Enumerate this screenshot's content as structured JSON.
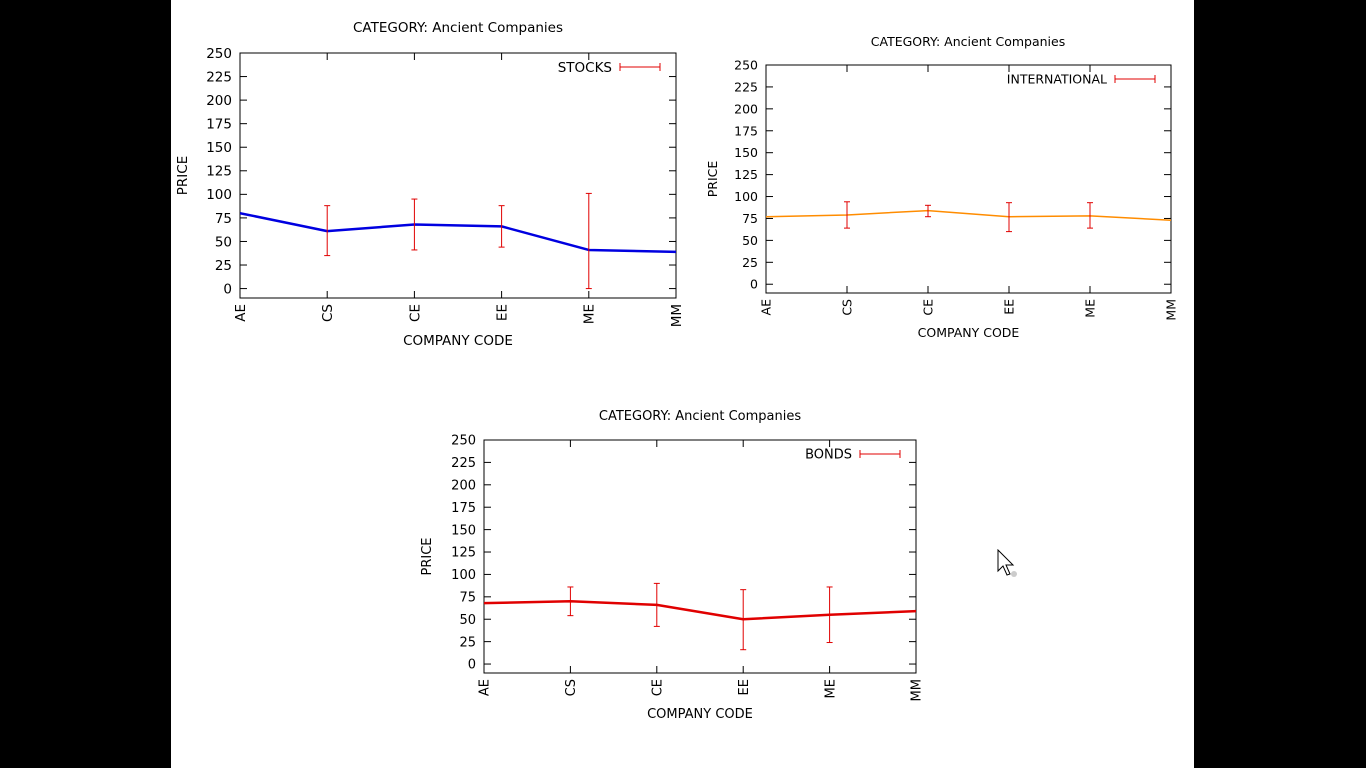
{
  "chart_data": [
    {
      "type": "line",
      "title": "CATEGORY: Ancient Companies",
      "xlabel": "COMPANY CODE",
      "ylabel": "PRICE",
      "categories": [
        "AE",
        "CS",
        "CE",
        "EE",
        "ME",
        "MM"
      ],
      "ylim": [
        -10,
        250
      ],
      "yticks": [
        0,
        25,
        50,
        75,
        100,
        125,
        150,
        175,
        200,
        225,
        250
      ],
      "legend_position": "top-right",
      "grid": false,
      "error_bar_color": "#e00000",
      "series": [
        {
          "name": "STOCKS",
          "color": "#0000e0",
          "values": [
            80,
            61,
            68,
            66,
            41,
            39
          ],
          "err_low": [
            null,
            35,
            41,
            44,
            0,
            null
          ],
          "err_high": [
            null,
            88,
            95,
            88,
            101,
            null
          ]
        }
      ]
    },
    {
      "type": "line",
      "title": "CATEGORY: Ancient Companies",
      "xlabel": "COMPANY CODE",
      "ylabel": "PRICE",
      "categories": [
        "AE",
        "CS",
        "CE",
        "EE",
        "ME",
        "MM"
      ],
      "ylim": [
        -10,
        250
      ],
      "yticks": [
        0,
        25,
        50,
        75,
        100,
        125,
        150,
        175,
        200,
        225,
        250
      ],
      "legend_position": "top-right",
      "grid": false,
      "error_bar_color": "#e00000",
      "series": [
        {
          "name": "INTERNATIONAL",
          "color": "#ff8c00",
          "values": [
            77,
            79,
            84,
            77,
            78,
            73
          ],
          "err_low": [
            null,
            64,
            77,
            60,
            64,
            null
          ],
          "err_high": [
            null,
            94,
            90,
            93,
            93,
            null
          ]
        }
      ]
    },
    {
      "type": "line",
      "title": "CATEGORY: Ancient Companies",
      "xlabel": "COMPANY CODE",
      "ylabel": "PRICE",
      "categories": [
        "AE",
        "CS",
        "CE",
        "EE",
        "ME",
        "MM"
      ],
      "ylim": [
        -10,
        250
      ],
      "yticks": [
        0,
        25,
        50,
        75,
        100,
        125,
        150,
        175,
        200,
        225,
        250
      ],
      "legend_position": "top-right",
      "grid": false,
      "error_bar_color": "#e00000",
      "series": [
        {
          "name": "BONDS",
          "color": "#e00000",
          "values": [
            68,
            70,
            66,
            50,
            55,
            59
          ],
          "err_low": [
            null,
            54,
            42,
            16,
            24,
            null
          ],
          "err_high": [
            null,
            86,
            90,
            83,
            86,
            null
          ]
        }
      ]
    }
  ]
}
